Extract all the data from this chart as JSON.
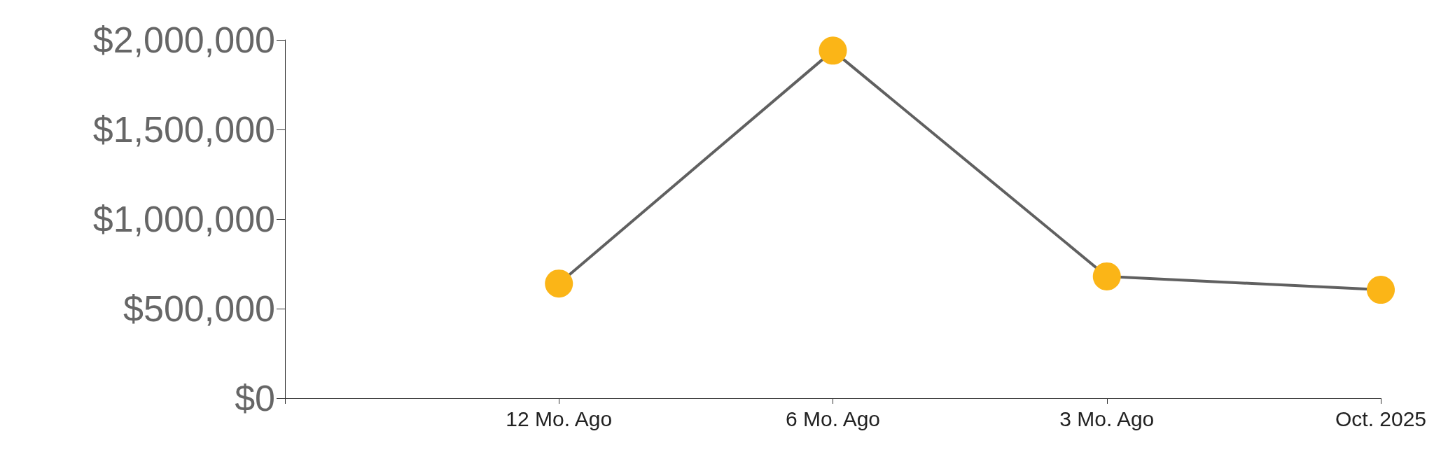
{
  "chart_data": {
    "type": "line",
    "categories": [
      null,
      "12 Mo. Ago",
      "6 Mo. Ago",
      "3 Mo. Ago",
      "Oct. 2025"
    ],
    "series": [
      {
        "color": "#606060",
        "colors": [
          "#fbb517",
          "#fbb517",
          "#fbb517",
          "#fbb517",
          "#fbb517"
        ],
        "values": [
          null,
          640000,
          1940000,
          680000,
          605000
        ]
      }
    ],
    "ylim": [
      0,
      2000000
    ],
    "yticks": [
      {
        "value": 0,
        "label": "$0"
      },
      {
        "value": 500000,
        "label": "$500,000"
      },
      {
        "value": 1000000,
        "label": "$1,000,000"
      },
      {
        "value": 1500000,
        "label": "$1,500,000"
      },
      {
        "value": 2000000,
        "label": "$2,000,000"
      }
    ],
    "grid": false,
    "marker": "circle",
    "line_style": "solid"
  }
}
